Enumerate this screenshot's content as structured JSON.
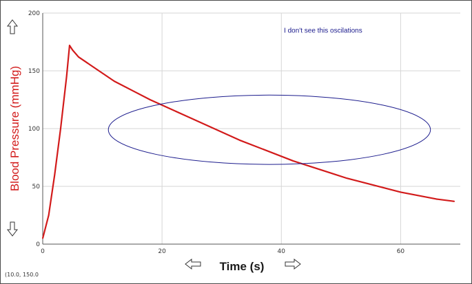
{
  "chart_data": {
    "type": "line",
    "title": "",
    "xlabel": "Time (s)",
    "ylabel": "Blood Pressure (mmHg)",
    "xlim": [
      0,
      70
    ],
    "ylim": [
      0,
      200
    ],
    "x_ticks": [
      0,
      20,
      40,
      60
    ],
    "y_ticks": [
      0,
      50,
      100,
      150,
      200
    ],
    "x_tick_labels": [
      "0",
      "20",
      "40",
      "60"
    ],
    "y_tick_labels": [
      "0",
      "50",
      "100",
      "150",
      "200"
    ],
    "grid": true,
    "series": [
      {
        "color": "#d21a1a",
        "x": [
          0,
          1,
          2,
          3,
          4,
          4.5,
          5,
          6,
          8,
          10,
          12,
          15,
          18,
          21,
          24,
          27,
          30,
          33,
          36,
          39,
          42,
          45,
          48,
          51,
          54,
          57,
          60,
          63,
          66,
          69
        ],
        "y": [
          5,
          25,
          60,
          100,
          145,
          172,
          168,
          162,
          155,
          148,
          141,
          133,
          125,
          118,
          111,
          104,
          97,
          90,
          84,
          78,
          72,
          67,
          62,
          57,
          53,
          49,
          45,
          42,
          39,
          37
        ]
      }
    ],
    "annotations": [
      {
        "text": "I don't see this oscilations",
        "x": 47,
        "y": 183
      }
    ],
    "ellipse": {
      "cx": 38,
      "cy": 99,
      "rx": 27,
      "ry": 30,
      "color": "#1a1a8c"
    },
    "coordinate_readout": "(10.0, 150.0"
  },
  "icons": {
    "y_up": "double-arrow-up-icon",
    "y_down": "double-arrow-down-icon",
    "x_left": "double-arrow-left-icon",
    "x_right": "double-arrow-right-icon"
  }
}
